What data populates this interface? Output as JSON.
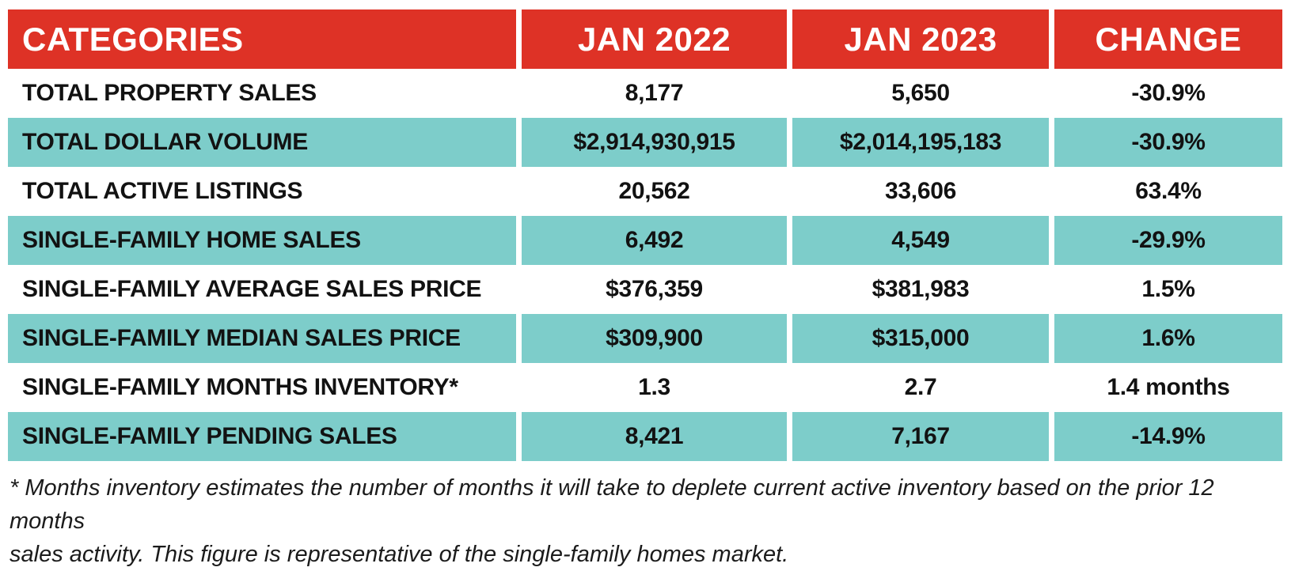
{
  "colors": {
    "header_bg": "#de3226",
    "stripe_bg": "#7dcdca",
    "header_text": "#ffffff",
    "body_text": "#121212"
  },
  "table": {
    "headers": [
      "CATEGORIES",
      "JAN 2022",
      "JAN 2023",
      "CHANGE"
    ],
    "rows": [
      {
        "category": "TOTAL PROPERTY SALES",
        "jan_2022": "8,177",
        "jan_2023": "5,650",
        "change": "-30.9%"
      },
      {
        "category": "TOTAL DOLLAR VOLUME",
        "jan_2022": "$2,914,930,915",
        "jan_2023": "$2,014,195,183",
        "change": "-30.9%"
      },
      {
        "category": "TOTAL ACTIVE LISTINGS",
        "jan_2022": "20,562",
        "jan_2023": "33,606",
        "change": "63.4%"
      },
      {
        "category": "SINGLE-FAMILY HOME SALES",
        "jan_2022": "6,492",
        "jan_2023": "4,549",
        "change": "-29.9%"
      },
      {
        "category": "SINGLE-FAMILY AVERAGE SALES PRICE",
        "jan_2022": "$376,359",
        "jan_2023": "$381,983",
        "change": "1.5%"
      },
      {
        "category": "SINGLE-FAMILY MEDIAN SALES PRICE",
        "jan_2022": "$309,900",
        "jan_2023": "$315,000",
        "change": "1.6%"
      },
      {
        "category": "SINGLE-FAMILY MONTHS INVENTORY*",
        "jan_2022": "1.3",
        "jan_2023": "2.7",
        "change": "1.4 months"
      },
      {
        "category": "SINGLE-FAMILY PENDING SALES",
        "jan_2022": "8,421",
        "jan_2023": "7,167",
        "change": "-14.9%"
      }
    ]
  },
  "footnote": {
    "line1": "* Months inventory estimates the number of months it will take to deplete current active inventory based on the prior 12 months",
    "line2": "sales activity. This figure is representative of the single-family homes market."
  },
  "chart_data": {
    "type": "table",
    "title": "Market comparison JAN 2022 vs JAN 2023",
    "columns": [
      "CATEGORIES",
      "JAN 2022",
      "JAN 2023",
      "CHANGE"
    ],
    "rows": [
      [
        "TOTAL PROPERTY SALES",
        "8,177",
        "5,650",
        "-30.9%"
      ],
      [
        "TOTAL DOLLAR VOLUME",
        "$2,914,930,915",
        "$2,014,195,183",
        "-30.9%"
      ],
      [
        "TOTAL ACTIVE LISTINGS",
        "20,562",
        "33,606",
        "63.4%"
      ],
      [
        "SINGLE-FAMILY HOME SALES",
        "6,492",
        "4,549",
        "-29.9%"
      ],
      [
        "SINGLE-FAMILY AVERAGE SALES PRICE",
        "$376,359",
        "$381,983",
        "1.5%"
      ],
      [
        "SINGLE-FAMILY MEDIAN SALES PRICE",
        "$309,900",
        "$315,000",
        "1.6%"
      ],
      [
        "SINGLE-FAMILY MONTHS INVENTORY*",
        "1.3",
        "2.7",
        "1.4 months"
      ],
      [
        "SINGLE-FAMILY PENDING SALES",
        "8,421",
        "7,167",
        "-14.9%"
      ]
    ],
    "footnote": "* Months inventory estimates the number of months it will take to deplete current active inventory based on the prior 12 months sales activity. This figure is representative of the single-family homes market.",
    "style": {
      "header_bg": "#de3226",
      "stripe_bg": "#7dcdca",
      "stripe_pattern": "even rows teal, odd rows white"
    }
  }
}
